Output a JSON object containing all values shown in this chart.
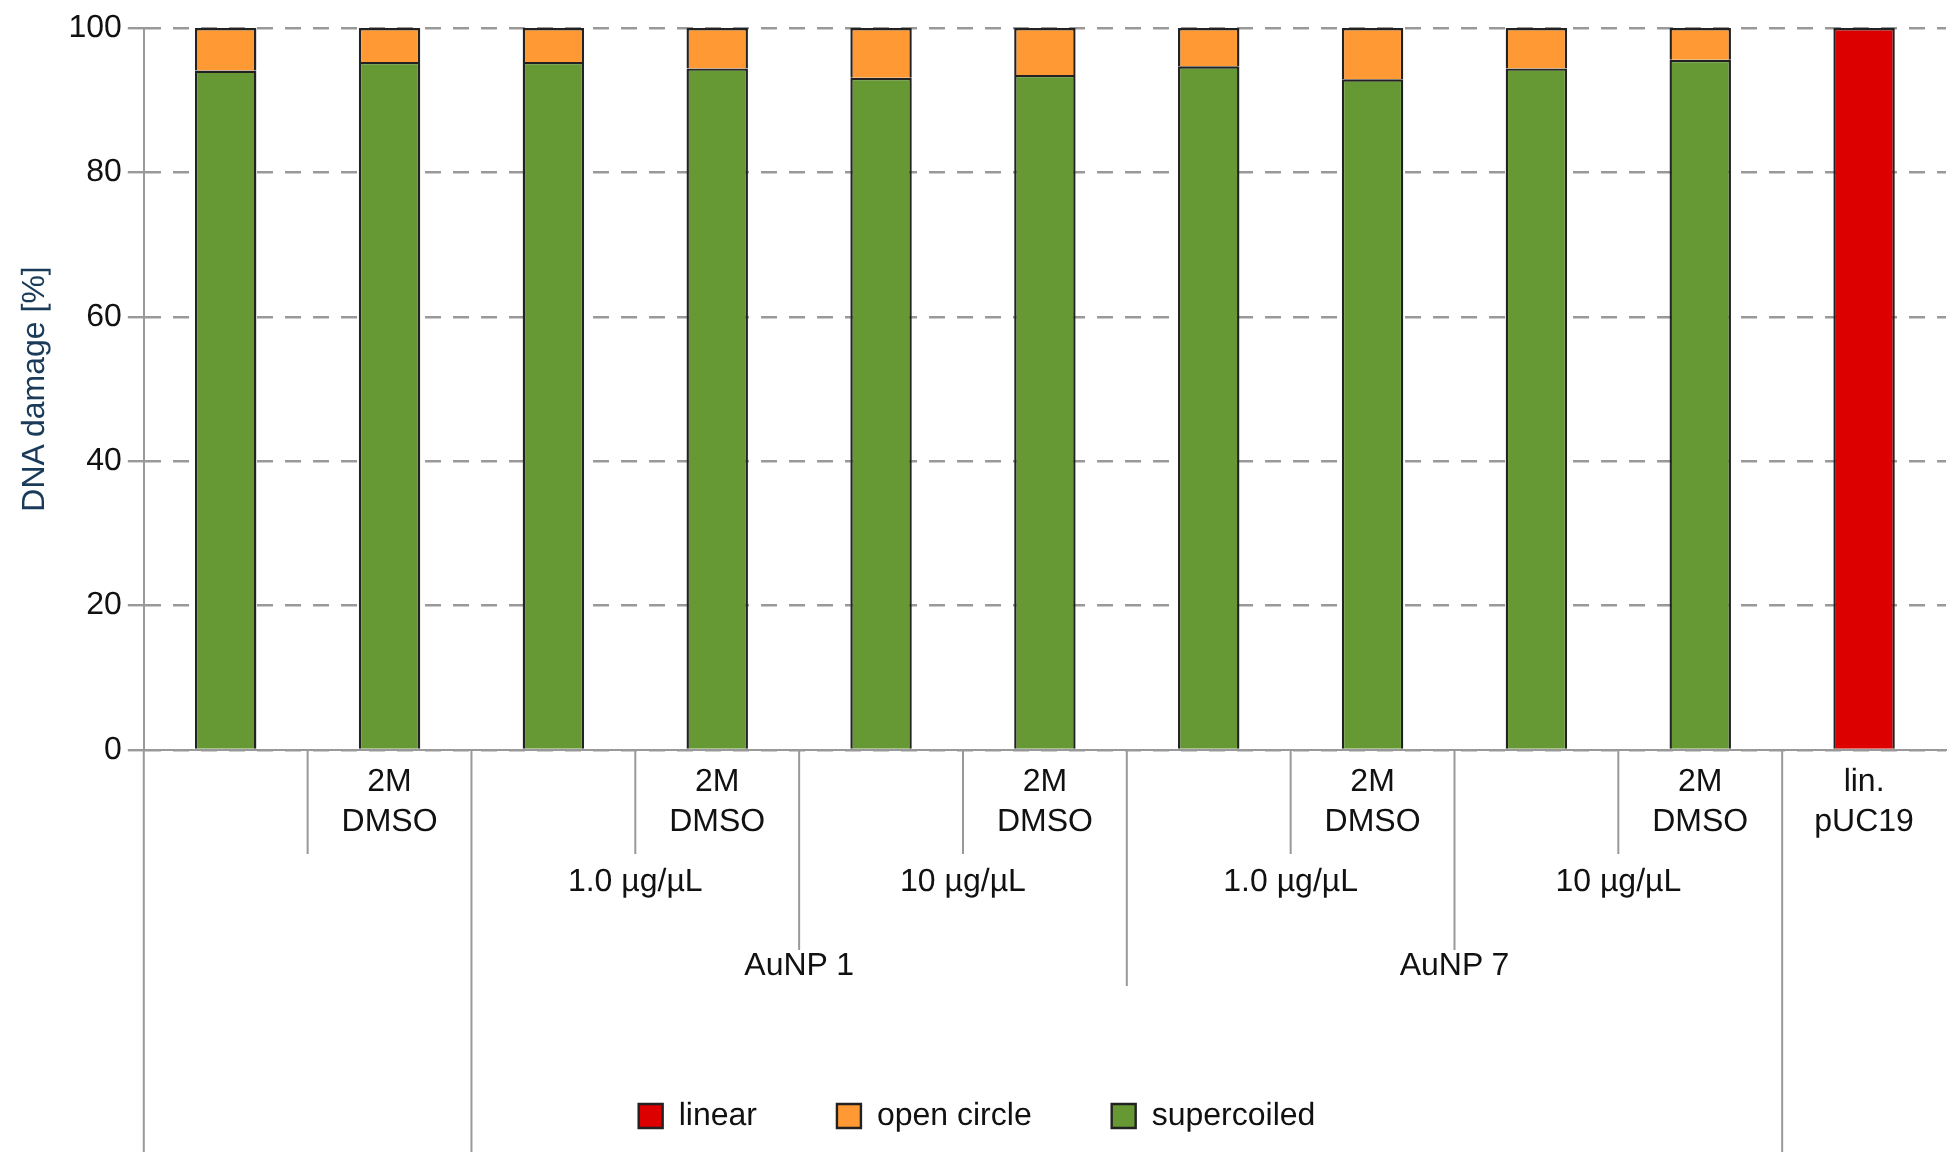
{
  "chart_data": {
    "type": "bar",
    "stacked": true,
    "ylabel": "DNA damage [%]",
    "categories": [
      null,
      "2M DMSO",
      null,
      "2M DMSO",
      null,
      "2M DMSO",
      null,
      "2M DMSO",
      null,
      "2M DMSO",
      "lin. pUC19"
    ],
    "series": [
      {
        "name": "supercoiled",
        "color": "#669933",
        "values": [
          94.1,
          95.3,
          95.3,
          94.4,
          93.1,
          93.5,
          94.7,
          92.9,
          94.4,
          95.6,
          null
        ]
      },
      {
        "name": "open circle",
        "color": "#ff9933",
        "values": [
          5.9,
          4.7,
          4.7,
          5.6,
          6.9,
          6.5,
          5.3,
          7.1,
          5.6,
          4.4,
          null
        ]
      },
      {
        "name": "linear",
        "color": "#dd0000",
        "values": [
          null,
          null,
          null,
          null,
          null,
          null,
          null,
          null,
          null,
          null,
          100
        ]
      }
    ],
    "ylim": [
      0,
      100
    ],
    "yticks": [
      0,
      20,
      40,
      60,
      80,
      100
    ],
    "grid": "y",
    "legend": "bottom",
    "annotations": [
      "1.0 µg/µL",
      "10 µg/µL",
      "1.0 µg/µL",
      "10 µg/µL",
      "AuNP 1",
      "AuNP 7"
    ]
  }
}
